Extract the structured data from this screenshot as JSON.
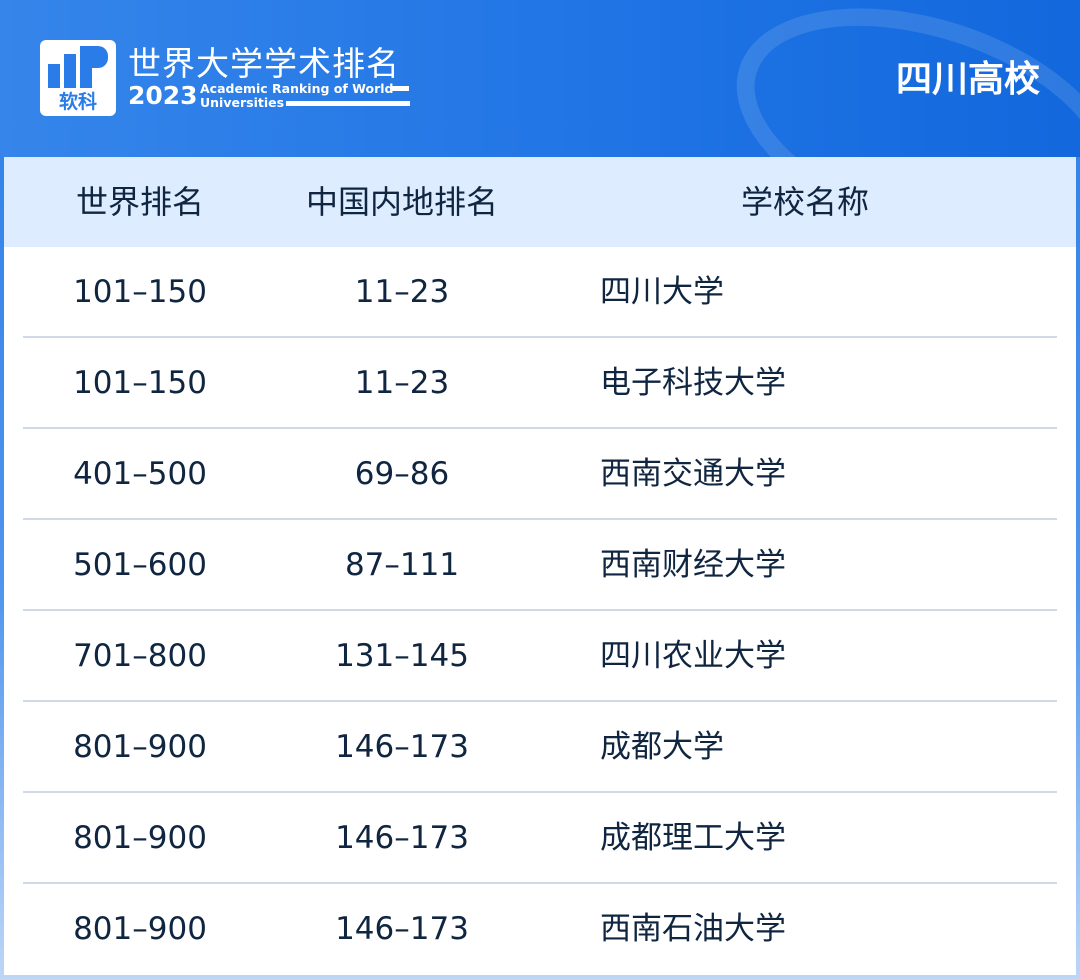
{
  "header": {
    "logo_text": "软科",
    "title_cn": "世界大学学术排名",
    "year": "2023",
    "title_en_line1": "Academic Ranking of  World",
    "title_en_line2": "Universities",
    "region": "四川高校"
  },
  "table": {
    "columns": [
      "世界排名",
      "中国内地排名",
      "学校名称"
    ],
    "rows": [
      [
        "101–150",
        "11–23",
        "四川大学"
      ],
      [
        "101–150",
        "11–23",
        "电子科技大学"
      ],
      [
        "401–500",
        "69–86",
        "西南交通大学"
      ],
      [
        "501–600",
        "87–111",
        "西南财经大学"
      ],
      [
        "701–800",
        "131–145",
        "四川农业大学"
      ],
      [
        "801–900",
        "146–173",
        "成都大学"
      ],
      [
        "801–900",
        "146–173",
        "成都理工大学"
      ],
      [
        "801–900",
        "146–173",
        "西南石油大学"
      ]
    ]
  }
}
